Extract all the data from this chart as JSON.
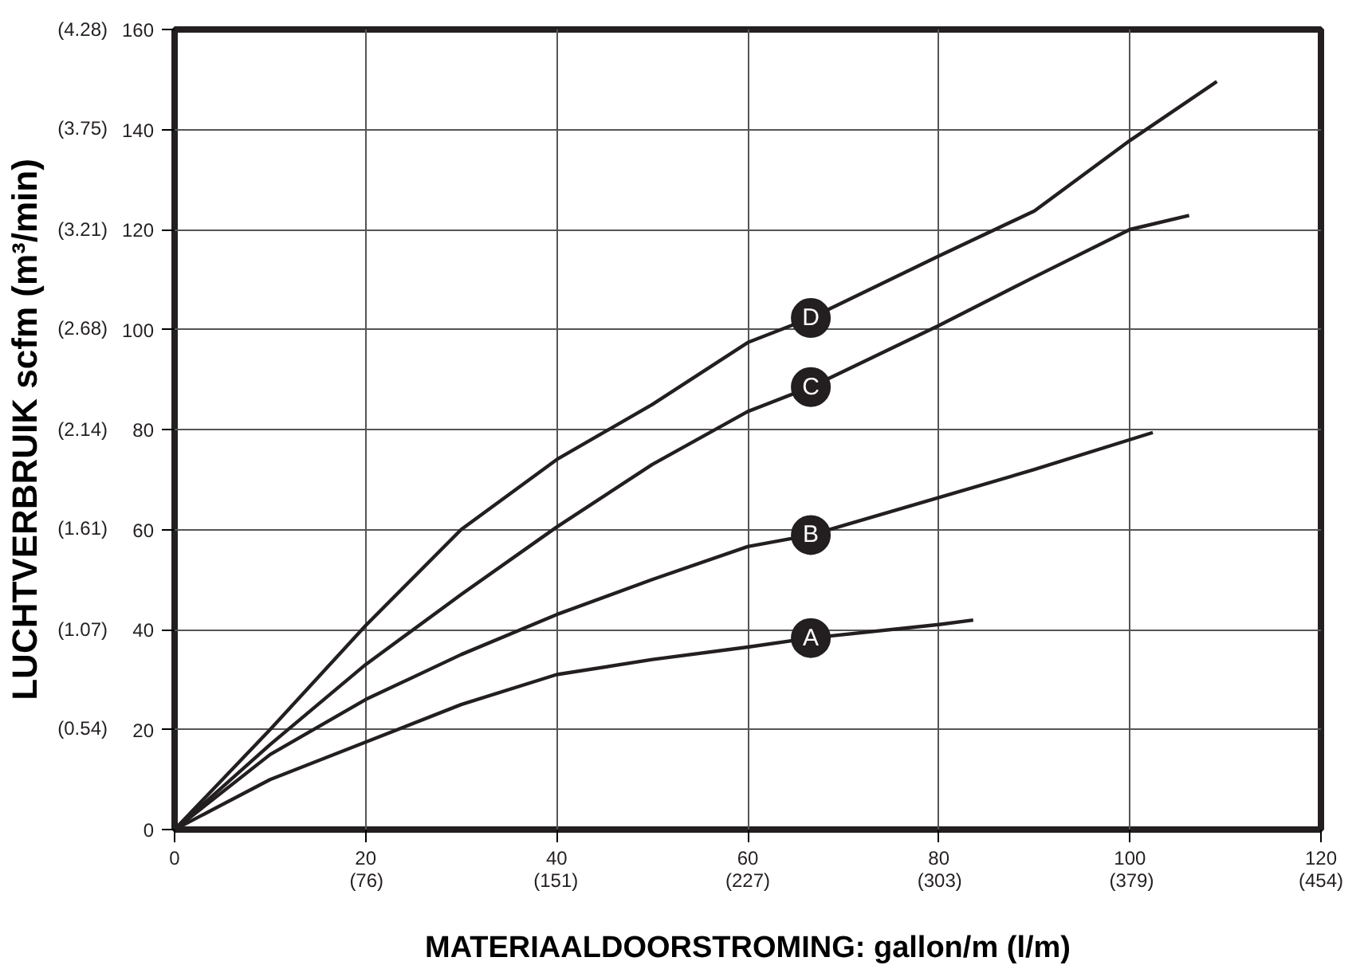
{
  "chart_data": {
    "type": "line",
    "xlabel": "MATERIAALDOORSTROMING: gallon/m (l/m)",
    "y2label": "LUCHTVERBRUIK scfm (m³/min)",
    "xlim": [
      0,
      120
    ],
    "ylim": [
      0,
      160
    ],
    "xticks": [
      0,
      20,
      40,
      60,
      80,
      100,
      120
    ],
    "yticks": [
      0,
      20,
      40,
      60,
      80,
      100,
      120,
      140,
      160
    ],
    "x2lim": [
      0,
      454
    ],
    "x2ticks": [
      {
        "value": 76,
        "label": "(76)"
      },
      {
        "value": 151,
        "label": "(151)"
      },
      {
        "value": 227,
        "label": "(227)"
      },
      {
        "value": 303,
        "label": "(303)"
      },
      {
        "value": 379,
        "label": "(379)"
      },
      {
        "value": 454,
        "label": "(454)"
      }
    ],
    "y2lim": [
      0,
      4.28
    ],
    "y2ticks": [
      {
        "value": 0.54,
        "label": "(0.54)"
      },
      {
        "value": 1.07,
        "label": "(1.07)"
      },
      {
        "value": 1.61,
        "label": "(1.61)"
      },
      {
        "value": 2.14,
        "label": "(2.14)"
      },
      {
        "value": 2.68,
        "label": "(2.68)"
      },
      {
        "value": 3.21,
        "label": "(3.21)"
      },
      {
        "value": 3.75,
        "label": "(3.75)"
      },
      {
        "value": 4.28,
        "label": "(4.28)"
      }
    ],
    "grid": true,
    "marker": "none",
    "line_style": "solid",
    "series": [
      {
        "name": "A",
        "color": "#231f20",
        "x": [
          0,
          10,
          20,
          30,
          40,
          50,
          60,
          66.6,
          80,
          83.6
        ],
        "values": [
          0,
          10,
          17.5,
          25,
          31,
          34,
          36.5,
          38.3,
          41,
          41.9
        ]
      },
      {
        "name": "B",
        "color": "#231f20",
        "x": [
          0,
          10,
          20,
          30,
          40,
          50,
          60,
          66.6,
          80,
          90,
          102.4
        ],
        "values": [
          0,
          15,
          26,
          35,
          43,
          50,
          56.6,
          58.9,
          66.4,
          72,
          79.4
        ]
      },
      {
        "name": "C",
        "color": "#231f20",
        "x": [
          0,
          10,
          20,
          30,
          40,
          50,
          60,
          66.6,
          80,
          90,
          100,
          106.2
        ],
        "values": [
          0,
          17,
          33,
          47,
          60.5,
          73,
          83.6,
          88.5,
          100.8,
          110.5,
          120,
          122.8
        ]
      },
      {
        "name": "D",
        "color": "#231f20",
        "x": [
          0,
          10,
          20,
          30,
          40,
          50,
          60,
          66.6,
          80,
          90,
          100,
          109.1
        ],
        "values": [
          0,
          20,
          40.8,
          60,
          74,
          85,
          97.4,
          102.3,
          114.7,
          123.7,
          137.8,
          149.6
        ]
      }
    ]
  }
}
